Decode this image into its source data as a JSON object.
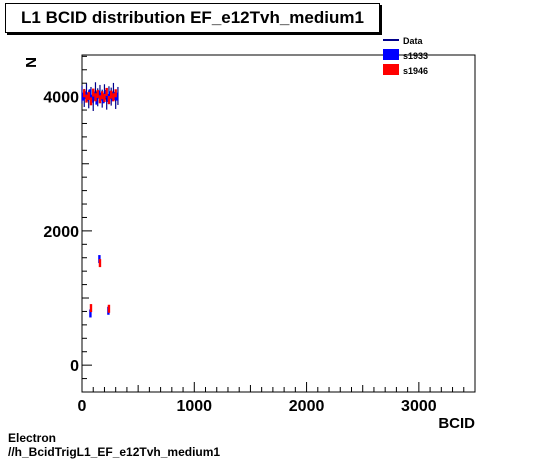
{
  "title": "L1 BCID distribution EF_e12Tvh_medium1",
  "footer": {
    "line1": "Electron",
    "line2": "//h_BcidTrigL1_EF_e12Tvh_medium1"
  },
  "colors": {
    "Data": "#00008b",
    "s1933": "#0000ff",
    "s1946": "#ff0000"
  },
  "chart_data": {
    "type": "scatter",
    "title": "L1 BCID distribution EF_e12Tvh_medium1",
    "xlabel": "BCID",
    "ylabel": "N",
    "xlim": [
      0,
      3500
    ],
    "ylim": [
      -400,
      4620
    ],
    "xticks": [
      0,
      1000,
      2000,
      3000
    ],
    "yticks": [
      0,
      2000,
      4000
    ],
    "legend": {
      "position": "top-right",
      "entries": [
        "Data",
        "s1933",
        "s1946"
      ]
    },
    "series": [
      {
        "name": "Data",
        "style": "line",
        "x": [
          0,
          20,
          40,
          60,
          80,
          100,
          120,
          140,
          160,
          180,
          200,
          220,
          240,
          260,
          280,
          300,
          320
        ],
        "y": [
          4030,
          3980,
          4060,
          3960,
          4010,
          3920,
          4080,
          3990,
          4040,
          3970,
          4050,
          3940,
          4020,
          4000,
          4070,
          3950,
          4010
        ]
      },
      {
        "name": "s1933",
        "style": "box",
        "x": [
          10,
          30,
          50,
          70,
          90,
          110,
          130,
          150,
          170,
          190,
          210,
          230,
          250,
          270,
          290,
          310,
          75,
          155,
          235
        ],
        "y": [
          4000,
          4020,
          3990,
          4050,
          3970,
          4010,
          3940,
          4030,
          4000,
          3960,
          4040,
          3980,
          4020,
          3990,
          4010,
          4000,
          770,
          1580,
          810
        ]
      },
      {
        "name": "s1946",
        "style": "box",
        "x": [
          20,
          40,
          60,
          80,
          100,
          120,
          140,
          160,
          180,
          200,
          220,
          240,
          260,
          280,
          300,
          80,
          160,
          240
        ],
        "y": [
          4050,
          3970,
          4010,
          3930,
          4060,
          3990,
          4040,
          3960,
          4020,
          3980,
          4070,
          3950,
          4030,
          3990,
          4050,
          850,
          1520,
          840
        ]
      }
    ]
  }
}
